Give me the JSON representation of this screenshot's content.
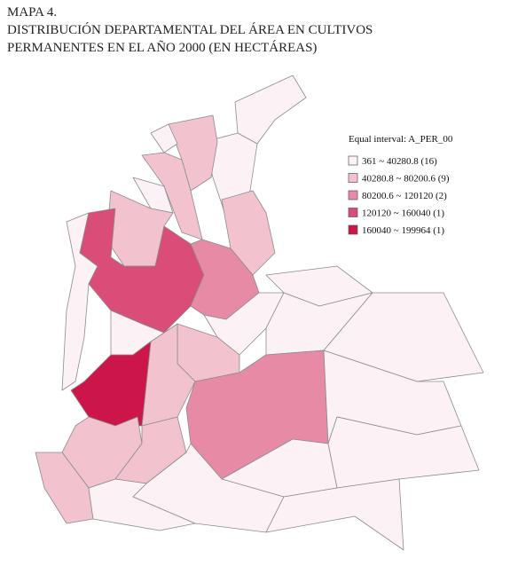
{
  "header": {
    "lines": [
      "MAPA 4.",
      "DISTRIBUCIÓN DEPARTAMENTAL DEL ÁREA EN CULTIVOS",
      "PERMANENTES EN EL AÑO 2000 (EN HECTÁREAS)"
    ]
  },
  "legend": {
    "title": "Equal interval: A_PER_00",
    "items": [
      {
        "label": "361 ~ 40280.8 (16)",
        "color": "#fcf1f4"
      },
      {
        "label": "40280.8 ~ 80200.6 (9)",
        "color": "#f2c3cf"
      },
      {
        "label": "80200.6 ~ 120120 (2)",
        "color": "#e68aa5"
      },
      {
        "label": "120120 ~ 160040 (1)",
        "color": "#da4d78"
      },
      {
        "label": "160040 ~ 199964 (1)",
        "color": "#cc1548"
      }
    ]
  }
}
